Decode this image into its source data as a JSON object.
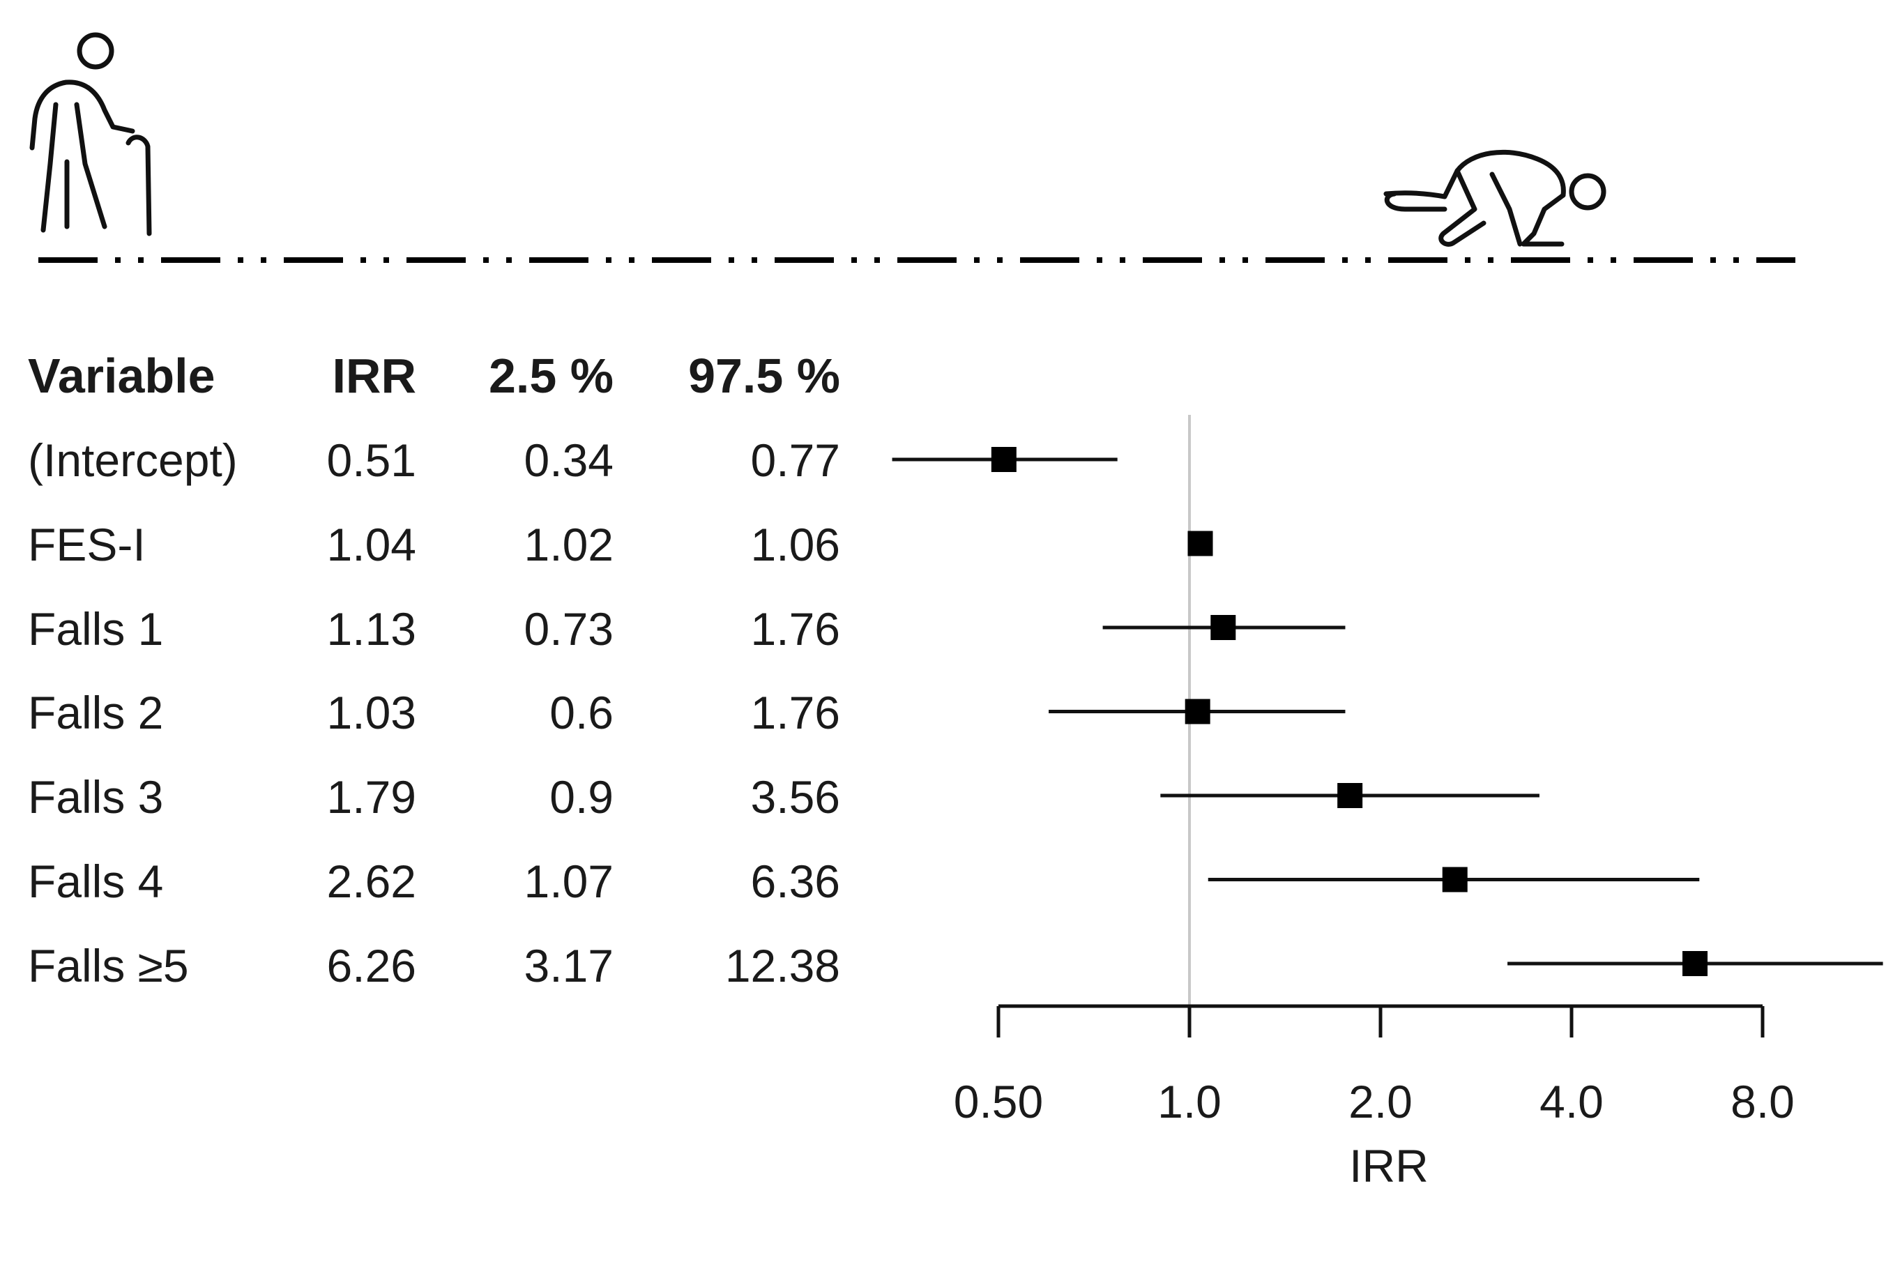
{
  "figure": {
    "left_icon": "elderly-person-with-cane-icon",
    "right_icon": "person-fallen-on-floor-icon",
    "divider_style": "dash-dot"
  },
  "table": {
    "headers": [
      "Variable",
      "IRR",
      "2.5 %",
      "97.5 %"
    ],
    "rows": [
      [
        "(Intercept)",
        "0.51",
        "0.34",
        "0.77"
      ],
      [
        "FES-I",
        "1.04",
        "1.02",
        "1.06"
      ],
      [
        "Falls 1",
        "1.13",
        "0.73",
        "1.76"
      ],
      [
        "Falls 2",
        "1.03",
        "0.6",
        "1.76"
      ],
      [
        "Falls 3",
        "1.79",
        "0.9",
        "3.56"
      ],
      [
        "Falls 4",
        "2.62",
        "1.07",
        "6.36"
      ],
      [
        "Falls ≥5",
        "6.26",
        "3.17",
        "12.38"
      ]
    ]
  },
  "chart_data": {
    "type": "forest",
    "categories": [
      "(Intercept)",
      "FES-I",
      "Falls 1",
      "Falls 2",
      "Falls 3",
      "Falls 4",
      "Falls ≥5"
    ],
    "series": [
      {
        "estimate": [
          0.51,
          1.04,
          1.13,
          1.03,
          1.79,
          2.62,
          6.26
        ],
        "lower": [
          0.34,
          1.02,
          0.73,
          0.6,
          0.9,
          1.07,
          3.17
        ],
        "upper": [
          0.77,
          1.06,
          1.76,
          1.76,
          3.56,
          6.36,
          12.38
        ]
      }
    ],
    "xlabel": "IRR",
    "x_scale": "log2",
    "x_ticks": [
      0.5,
      1.0,
      2.0,
      4.0,
      8.0
    ],
    "x_tick_labels": [
      "0.50",
      "1.0",
      "2.0",
      "4.0",
      "8.0"
    ],
    "reference_line": 1.0,
    "marker_color": "#000000",
    "reference_line_color": "#c8c8c8"
  }
}
